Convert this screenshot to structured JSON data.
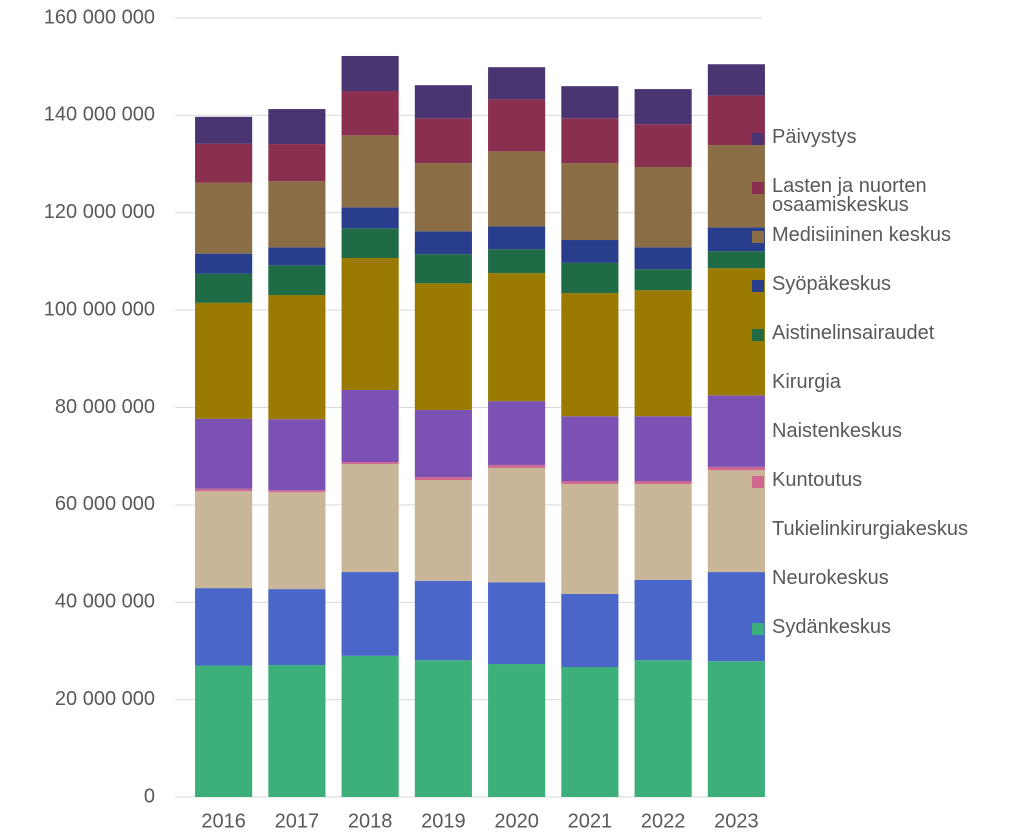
{
  "chart_data": {
    "type": "bar",
    "stacked": true,
    "categories": [
      "2016",
      "2017",
      "2018",
      "2019",
      "2020",
      "2021",
      "2022",
      "2023"
    ],
    "series": [
      {
        "name": "Sydänkeskus",
        "color": "#3daf7a",
        "values": [
          27000000,
          27100000,
          29000000,
          28100000,
          27300000,
          26700000,
          28100000,
          27900000
        ]
      },
      {
        "name": "Neurokeskus",
        "color": "#4a66c8",
        "values": [
          15900000,
          15600000,
          17200000,
          16300000,
          16800000,
          15000000,
          16500000,
          18300000
        ]
      },
      {
        "name": "Tukielinkirurgiakeskus",
        "color": "#c9b597",
        "values": [
          19900000,
          19900000,
          22200000,
          20700000,
          23500000,
          22600000,
          19700000,
          20900000
        ]
      },
      {
        "name": "Kuntoutus",
        "color": "#d0678f",
        "values": [
          500000,
          400000,
          400000,
          600000,
          600000,
          600000,
          600000,
          700000
        ]
      },
      {
        "name": "Naistenkeskus",
        "color": "#7b52b4",
        "values": [
          14400000,
          14600000,
          14800000,
          13800000,
          13100000,
          13300000,
          13300000,
          14700000
        ]
      },
      {
        "name": "Kirurgia",
        "color": "#9a7a00",
        "values": [
          23800000,
          25500000,
          27100000,
          26000000,
          26300000,
          25300000,
          25900000,
          26100000
        ]
      },
      {
        "name": "Aistinelinsairaudet",
        "color": "#1f6b45",
        "values": [
          6000000,
          6100000,
          6100000,
          6000000,
          4900000,
          6200000,
          4300000,
          3500000
        ]
      },
      {
        "name": "Syöpäkeskus",
        "color": "#283d8c",
        "values": [
          4100000,
          3700000,
          4300000,
          4700000,
          4700000,
          4700000,
          4500000,
          4900000
        ]
      },
      {
        "name": "Medisiininen keskus",
        "color": "#8b6e46",
        "values": [
          14600000,
          13600000,
          14800000,
          14000000,
          15400000,
          15800000,
          16500000,
          16900000
        ]
      },
      {
        "name": "Lasten ja nuorten osaamiskeskus",
        "color": "#8a2f4f",
        "values": [
          8000000,
          7600000,
          9100000,
          9200000,
          10700000,
          9200000,
          8800000,
          10200000
        ]
      },
      {
        "name": "Päivystys",
        "color": "#4a3573",
        "values": [
          5500000,
          7200000,
          7200000,
          6800000,
          6600000,
          6600000,
          7200000,
          6400000
        ]
      }
    ],
    "ylim": [
      0,
      160000000
    ],
    "yticks": [
      0,
      {
        "value": 20000000,
        "label": "20 000 000"
      },
      {
        "value": 40000000,
        "label": "40 000 000"
      },
      {
        "value": 60000000,
        "label": "60 000 000"
      },
      {
        "value": 80000000,
        "label": "80 000 000"
      },
      {
        "value": 100000000,
        "label": "100 000 000"
      },
      {
        "value": 120000000,
        "label": "120 000 000"
      },
      {
        "value": 140000000,
        "label": "140 000 000"
      },
      {
        "value": 160000000,
        "label": "160 000 000"
      }
    ],
    "grid": true,
    "legend": "right"
  }
}
